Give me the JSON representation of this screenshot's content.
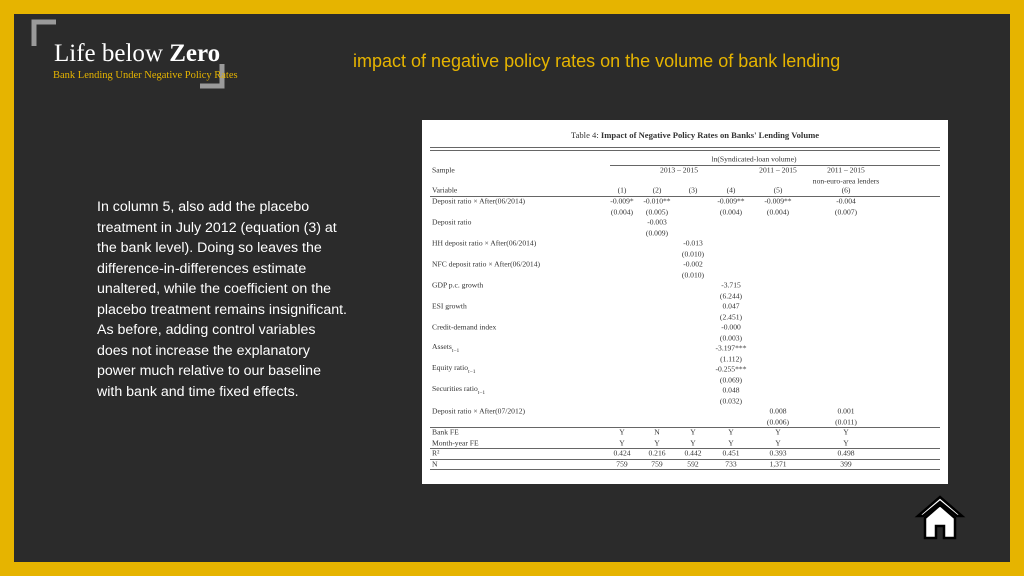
{
  "logo": {
    "title_plain": "Life below",
    "title_bold": "Zero",
    "subtitle": "Bank Lending Under Negative Policy Rates"
  },
  "slide_title": "impact of negative policy rates on the volume of bank lending",
  "paragraph": [
    "In column 5,  also add the placebo",
    "treatment in July 2012 (equation (3) at",
    "the bank level). Doing so leaves the",
    "difference-in-differences estimate",
    "unaltered, while the coefficient on the",
    "placebo treatment remains insignificant.",
    "As before, adding control variables",
    "does not increase the explanatory",
    "power much relative to our baseline",
    "with bank and time fixed effects."
  ],
  "table": {
    "caption_prefix": "Table 4:",
    "caption": "Impact of Negative Policy Rates on Banks' Lending Volume",
    "dependent": "ln(Syndicated-loan volume)",
    "sample_label": "Sample",
    "samples": [
      "2013 – 2015",
      "2011 – 2015",
      "2011 – 2015"
    ],
    "sample_note": "non-euro-area lenders",
    "variable_label": "Variable",
    "columns": [
      "(1)",
      "(2)",
      "(3)",
      "(4)",
      "(5)",
      "(6)"
    ],
    "rows": [
      {
        "label": "Deposit ratio × After(06/2014)",
        "cells": [
          "-0.009*",
          "-0.010**",
          null,
          "-0.009**",
          "-0.009**",
          "-0.004"
        ]
      },
      {
        "cells": [
          "(0.004)",
          "(0.005)",
          null,
          "(0.004)",
          "(0.004)",
          "(0.007)"
        ]
      },
      {
        "label": "Deposit ratio",
        "cells": [
          null,
          "-0.003",
          null,
          null,
          null,
          null
        ]
      },
      {
        "cells": [
          null,
          "(0.009)",
          null,
          null,
          null,
          null
        ]
      },
      {
        "label": "HH deposit ratio × After(06/2014)",
        "cells": [
          null,
          null,
          "-0.013",
          null,
          null,
          null
        ]
      },
      {
        "cells": [
          null,
          null,
          "(0.010)",
          null,
          null,
          null
        ]
      },
      {
        "label": "NFC deposit ratio × After(06/2014)",
        "cells": [
          null,
          null,
          "-0.002",
          null,
          null,
          null
        ]
      },
      {
        "cells": [
          null,
          null,
          "(0.010)",
          null,
          null,
          null
        ]
      },
      {
        "label": "GDP p.c. growth",
        "cells": [
          null,
          null,
          null,
          "-3.715",
          null,
          null
        ]
      },
      {
        "cells": [
          null,
          null,
          null,
          "(6.244)",
          null,
          null
        ]
      },
      {
        "label": "ESI growth",
        "cells": [
          null,
          null,
          null,
          "0.047",
          null,
          null
        ]
      },
      {
        "cells": [
          null,
          null,
          null,
          "(2.451)",
          null,
          null
        ]
      },
      {
        "label": "Credit-demand index",
        "cells": [
          null,
          null,
          null,
          "-0.000",
          null,
          null
        ]
      },
      {
        "cells": [
          null,
          null,
          null,
          "(0.003)",
          null,
          null
        ]
      },
      {
        "label": "Assets",
        "sub": "t−1",
        "cells": [
          null,
          null,
          null,
          "-3.197***",
          null,
          null
        ]
      },
      {
        "cells": [
          null,
          null,
          null,
          "(1.112)",
          null,
          null
        ]
      },
      {
        "label": "Equity ratio",
        "sub": "t−1",
        "cells": [
          null,
          null,
          null,
          "-0.255***",
          null,
          null
        ]
      },
      {
        "cells": [
          null,
          null,
          null,
          "(0.069)",
          null,
          null
        ]
      },
      {
        "label": "Securities ratio",
        "sub": "t−1",
        "cells": [
          null,
          null,
          null,
          "0.048",
          null,
          null
        ]
      },
      {
        "cells": [
          null,
          null,
          null,
          "(0.032)",
          null,
          null
        ]
      },
      {
        "label": "Deposit ratio × After(07/2012)",
        "cells": [
          null,
          null,
          null,
          null,
          "0.008",
          "0.001"
        ]
      },
      {
        "cells": [
          null,
          null,
          null,
          null,
          "(0.006)",
          "(0.011)"
        ]
      },
      {
        "label": "Bank FE",
        "cells": [
          "Y",
          "N",
          "Y",
          "Y",
          "Y",
          "Y"
        ]
      },
      {
        "label": "Month-year FE",
        "cells": [
          "Y",
          "Y",
          "Y",
          "Y",
          "Y",
          "Y"
        ]
      },
      {
        "label": "R²",
        "cells": [
          "0.424",
          "0.216",
          "0.442",
          "0.451",
          "0.393",
          "0.498"
        ]
      },
      {
        "label": "N",
        "cells": [
          "759",
          "759",
          "592",
          "733",
          "1,371",
          "399"
        ]
      }
    ]
  }
}
